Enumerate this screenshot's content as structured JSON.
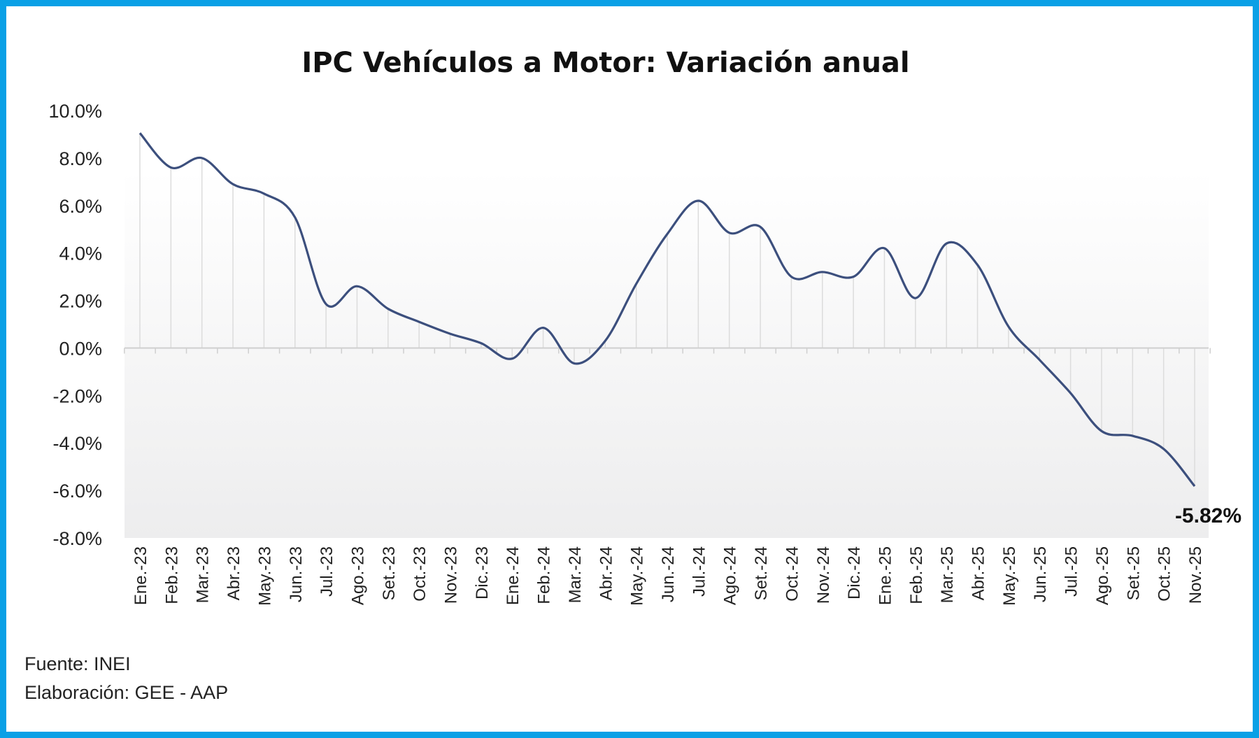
{
  "chart_data": {
    "type": "line",
    "title": "IPC Vehículos a Motor: Variación anual",
    "xlabel": "",
    "ylabel": "",
    "ylim": [
      -8,
      10
    ],
    "yticks": [
      10,
      8,
      6,
      4,
      2,
      0,
      -2,
      -4,
      -6,
      -8
    ],
    "ytick_labels": [
      "10.0%",
      "8.0%",
      "6.0%",
      "4.0%",
      "2.0%",
      "0.0%",
      "-2.0%",
      "-4.0%",
      "-6.0%",
      "-8.0%"
    ],
    "categories": [
      "Ene.-23",
      "Feb.-23",
      "Mar.-23",
      "Abr.-23",
      "May.-23",
      "Jun.-23",
      "Jul.-23",
      "Ago.-23",
      "Set.-23",
      "Oct.-23",
      "Nov.-23",
      "Dic.-23",
      "Ene.-24",
      "Feb.-24",
      "Mar.-24",
      "Abr.-24",
      "May.-24",
      "Jun.-24",
      "Jul.-24",
      "Ago.-24",
      "Set.-24",
      "Oct.-24",
      "Nov.-24",
      "Dic.-24",
      "Ene.-25",
      "Feb.-25",
      "Mar.-25",
      "Abr.-25",
      "May.-25",
      "Jun.-25",
      "Jul.-25",
      "Ago.-25",
      "Set.-25",
      "Oct.-25",
      "Nov.-25"
    ],
    "series": [
      {
        "name": "Variación anual",
        "color": "#3c4f7d",
        "values": [
          9.05,
          7.6,
          8.0,
          6.9,
          6.5,
          5.5,
          1.85,
          2.6,
          1.65,
          1.1,
          0.6,
          0.2,
          -0.45,
          0.85,
          -0.65,
          0.3,
          2.7,
          4.8,
          6.2,
          4.85,
          5.1,
          3.0,
          3.2,
          3.0,
          4.2,
          2.1,
          4.4,
          3.5,
          0.9,
          -0.5,
          -1.9,
          -3.5,
          -3.7,
          -4.25,
          -5.82
        ]
      }
    ],
    "annotations": [
      {
        "category": "Nov.-25",
        "text": "-5.82%"
      }
    ],
    "grid": false,
    "legend": "none"
  },
  "footer": {
    "source": "Fuente: INEI",
    "elaboration": "Elaboración: GEE - AAP"
  }
}
